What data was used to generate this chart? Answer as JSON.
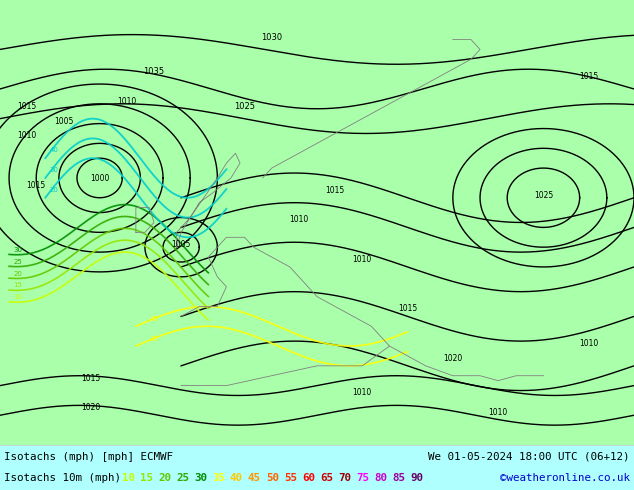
{
  "title_left": "Isotachs (mph) [mph] ECMWF",
  "title_right": "We 01-05-2024 18:00 UTC (06+12)",
  "legend_label": "Isotachs 10m (mph)",
  "copyright": "©weatheronline.co.uk",
  "legend_values": [
    10,
    15,
    20,
    25,
    30,
    35,
    40,
    45,
    50,
    55,
    60,
    65,
    70,
    75,
    80,
    85,
    90
  ],
  "legend_colors": [
    "#c8ff00",
    "#96e600",
    "#64c800",
    "#32aa00",
    "#008c00",
    "#ffff00",
    "#ffc800",
    "#ff9600",
    "#ff6400",
    "#ff3200",
    "#ff0000",
    "#cd0000",
    "#9b0000",
    "#ff00ff",
    "#c800c8",
    "#9b009b",
    "#640064"
  ],
  "figure_width": 6.34,
  "figure_height": 4.9,
  "dpi": 100,
  "bottom_bar_color": "#ffffff",
  "text_color": "#000000",
  "copyright_color": "#0000cd",
  "map_bg": "#b4e6b4",
  "land_color": "#c8f0c8",
  "sea_color": "#ddeeff",
  "isobar_color": "#000000",
  "isotach_10_color": "#c8ff00",
  "isotach_15_color": "#96e600",
  "isotach_20_color": "#64c800",
  "isotach_25_color": "#32aa00",
  "isotach_30_color": "#008c00",
  "isotach_cyan_color": "#00cdcd",
  "isotach_yellow_color": "#ffff00"
}
